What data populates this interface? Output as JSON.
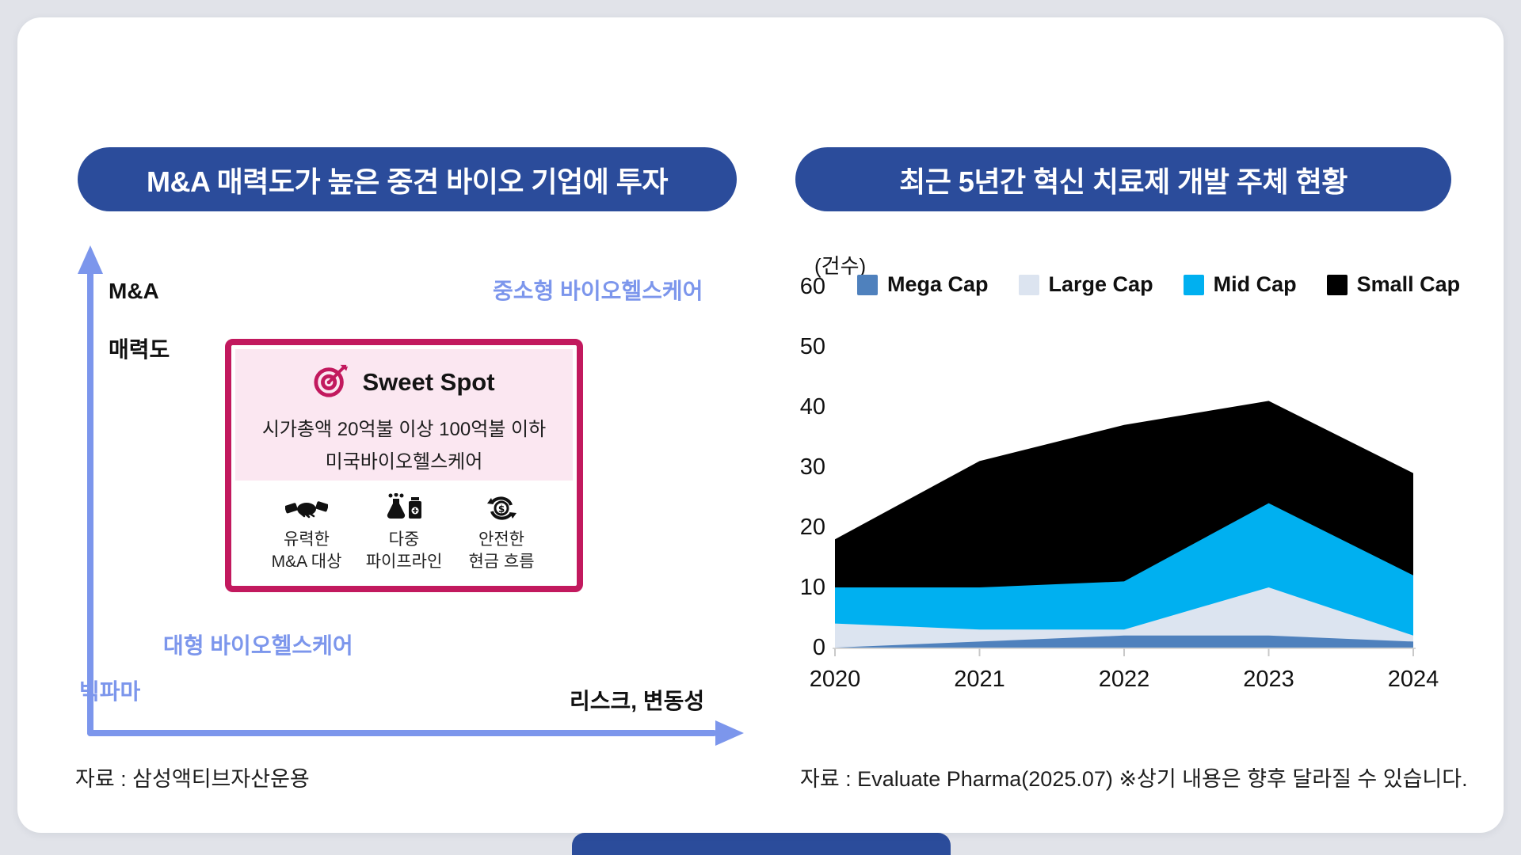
{
  "page": {
    "background_color": "#E1E3E9",
    "card_color": "#FFFFFF",
    "accent_blue": "#2B4C9B",
    "periwinkle": "#7C96EC",
    "magenta": "#C2195E"
  },
  "left_panel": {
    "title": "M&A 매력도가 높은 중견 바이오 기업에 투자",
    "y_axis_label_line1": "M&A",
    "y_axis_label_line2": "매력도",
    "x_axis_label": "리스크, 변동성",
    "label_top_right": "중소형 바이오헬스케어",
    "label_mid_left": "대형 바이오헬스케어",
    "label_bottom_left": "빅파마",
    "sweet_spot": {
      "title": "Sweet Spot",
      "line1": "시가총액 20억불 이상 100억불 이하",
      "line2": "미국바이오헬스케어",
      "features": [
        {
          "icon": "handshake-icon",
          "label_line1": "유력한",
          "label_line2": "M&A 대상"
        },
        {
          "icon": "flask-pipeline-icon",
          "label_line1": "다중",
          "label_line2": "파이프라인"
        },
        {
          "icon": "cash-cycle-icon",
          "label_line1": "안전한",
          "label_line2": "현금 흐름"
        }
      ]
    },
    "source": "자료 : 삼성액티브자산운용"
  },
  "right_panel": {
    "title": "최근 5년간 혁신 치료제 개발 주체 현황",
    "unit_label": "(건수)",
    "source": "자료 : Evaluate Pharma(2025.07) ※상기 내용은 향후 달라질 수 있습니다."
  },
  "chart_data": {
    "type": "area",
    "stacked": true,
    "title": "최근 5년간 혁신 치료제 개발 주체 현황",
    "ylabel": "(건수)",
    "x": [
      2020,
      2021,
      2022,
      2023,
      2024
    ],
    "series": [
      {
        "name": "Mega Cap",
        "color": "#4F81BD",
        "values": [
          0,
          1,
          2,
          2,
          1
        ]
      },
      {
        "name": "Large Cap",
        "color": "#DCE4F0",
        "values": [
          4,
          2,
          1,
          8,
          1
        ]
      },
      {
        "name": "Mid Cap",
        "color": "#00B0F0",
        "values": [
          6,
          7,
          8,
          14,
          10
        ]
      },
      {
        "name": "Small Cap",
        "color": "#000000",
        "values": [
          8,
          21,
          26,
          17,
          17
        ]
      }
    ],
    "totals": [
      18,
      31,
      37,
      41,
      29
    ],
    "ylim": [
      0,
      60
    ],
    "yticks": [
      0,
      10,
      20,
      30,
      40,
      50,
      60
    ],
    "legend_position": "top",
    "grid": false
  }
}
